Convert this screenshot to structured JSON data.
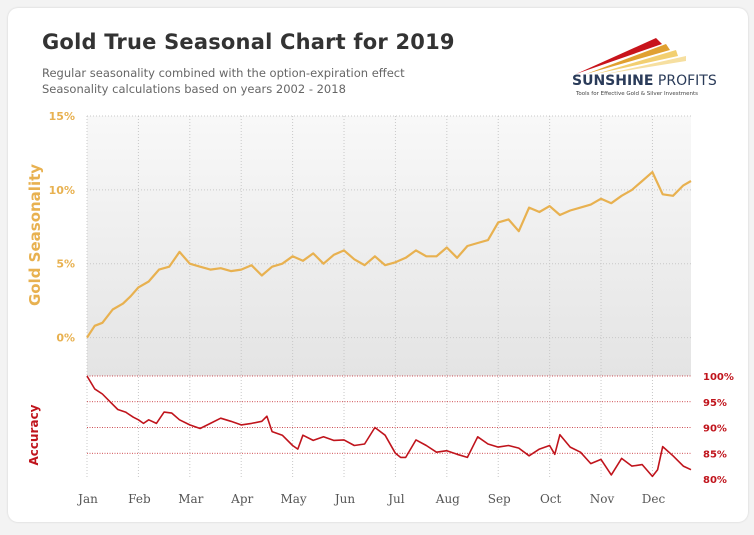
{
  "header": {
    "title": "Gold True Seasonal Chart for 2019",
    "subtitle_1": "Regular seasonality combined with the option-expiration effect",
    "subtitle_2": "Seasonality calculations based on years 2002 - 2018"
  },
  "logo": {
    "name_bold": "SUNSHINE",
    "name_light": " PROFITS",
    "tagline": "Tools for Effective Gold & Silver Investments"
  },
  "colors": {
    "seasonality": "#e8b150",
    "accuracy": "#c0141c",
    "grid": "#c8c8c8",
    "plot_bg_top": "#f8f8f8",
    "plot_bg_bottom": "#e4e4e4"
  },
  "chart_data": [
    {
      "type": "line",
      "ylabel": "Gold Seasonality",
      "yticks": [
        "0%",
        "5%",
        "10%",
        "15%"
      ],
      "ytick_values": [
        0,
        5,
        10,
        15
      ],
      "ylim": [
        -2.6,
        15
      ],
      "xlabels": [
        "Jan",
        "Feb",
        "Mar",
        "Apr",
        "May",
        "Jun",
        "Jul",
        "Aug",
        "Sep",
        "Oct",
        "Nov",
        "Dec"
      ],
      "grid": true,
      "series": [
        {
          "x": [
            0,
            0.15,
            0.3,
            0.5,
            0.7,
            0.85,
            1.0,
            1.2,
            1.4,
            1.6,
            1.8,
            2.0,
            2.2,
            2.4,
            2.6,
            2.8,
            3.0,
            3.2,
            3.4,
            3.6,
            3.8,
            4.0,
            4.2,
            4.4,
            4.6,
            4.8,
            5.0,
            5.2,
            5.4,
            5.6,
            5.8,
            6.0,
            6.2,
            6.4,
            6.6,
            6.8,
            7.0,
            7.2,
            7.4,
            7.6,
            7.8,
            8.0,
            8.2,
            8.4,
            8.6,
            8.8,
            9.0,
            9.2,
            9.4,
            9.6,
            9.8,
            10.0,
            10.2,
            10.4,
            10.6,
            10.8,
            11.0,
            11.2,
            11.4,
            11.6,
            11.75
          ],
          "values": [
            0.0,
            0.8,
            1.0,
            1.9,
            2.3,
            2.8,
            3.4,
            3.8,
            4.6,
            4.8,
            5.8,
            5.0,
            4.8,
            4.6,
            4.7,
            4.5,
            4.6,
            4.9,
            4.2,
            4.8,
            5.0,
            5.5,
            5.2,
            5.7,
            5.0,
            5.6,
            5.9,
            5.3,
            4.9,
            5.5,
            4.9,
            5.1,
            5.4,
            5.9,
            5.5,
            5.5,
            6.1,
            5.4,
            6.2,
            6.4,
            6.6,
            7.8,
            8.0,
            7.2,
            8.8,
            8.5,
            8.9,
            8.3,
            8.6,
            8.8,
            9.0,
            9.4,
            9.1,
            9.6,
            10.0,
            10.6,
            11.2,
            9.7,
            9.6,
            10.3,
            10.6
          ]
        }
      ]
    },
    {
      "type": "line",
      "ylabel": "Accuracy",
      "yticks": [
        "100%",
        "95%",
        "90%",
        "85%",
        "80%"
      ],
      "ytick_values": [
        100,
        95,
        90,
        85,
        80
      ],
      "ylim": [
        80,
        100
      ],
      "grid": true,
      "series": [
        {
          "x": [
            0,
            0.15,
            0.3,
            0.45,
            0.6,
            0.75,
            0.9,
            1.0,
            1.1,
            1.2,
            1.35,
            1.5,
            1.65,
            1.8,
            2.0,
            2.2,
            2.4,
            2.6,
            2.8,
            3.0,
            3.2,
            3.4,
            3.5,
            3.6,
            3.8,
            4.0,
            4.1,
            4.2,
            4.4,
            4.6,
            4.8,
            5.0,
            5.2,
            5.4,
            5.6,
            5.8,
            6.0,
            6.1,
            6.2,
            6.4,
            6.6,
            6.8,
            7.0,
            7.2,
            7.4,
            7.6,
            7.8,
            8.0,
            8.2,
            8.4,
            8.6,
            8.8,
            9.0,
            9.1,
            9.2,
            9.4,
            9.6,
            9.8,
            10.0,
            10.2,
            10.4,
            10.6,
            10.8,
            11.0,
            11.1,
            11.2,
            11.4,
            11.6,
            11.75
          ],
          "values": [
            100,
            97.5,
            96.5,
            95,
            93.5,
            93,
            92,
            91.5,
            90.8,
            91.5,
            90.8,
            93,
            92.8,
            91.5,
            90.5,
            89.8,
            90.8,
            91.8,
            91.2,
            90.5,
            90.8,
            91.2,
            92.2,
            89.2,
            88.5,
            86.5,
            85.8,
            88.5,
            87.5,
            88.2,
            87.5,
            87.6,
            86.5,
            86.8,
            90.0,
            88.5,
            85.0,
            84.2,
            84.2,
            87.6,
            86.5,
            85.2,
            85.5,
            84.8,
            84.2,
            88.2,
            86.8,
            86.2,
            86.5,
            86.0,
            84.5,
            85.8,
            86.5,
            84.8,
            88.6,
            86.2,
            85.2,
            83.0,
            83.8,
            80.8,
            84.0,
            82.5,
            82.8,
            80.5,
            81.8,
            86.3,
            84.5,
            82.5,
            81.8
          ]
        }
      ]
    }
  ]
}
